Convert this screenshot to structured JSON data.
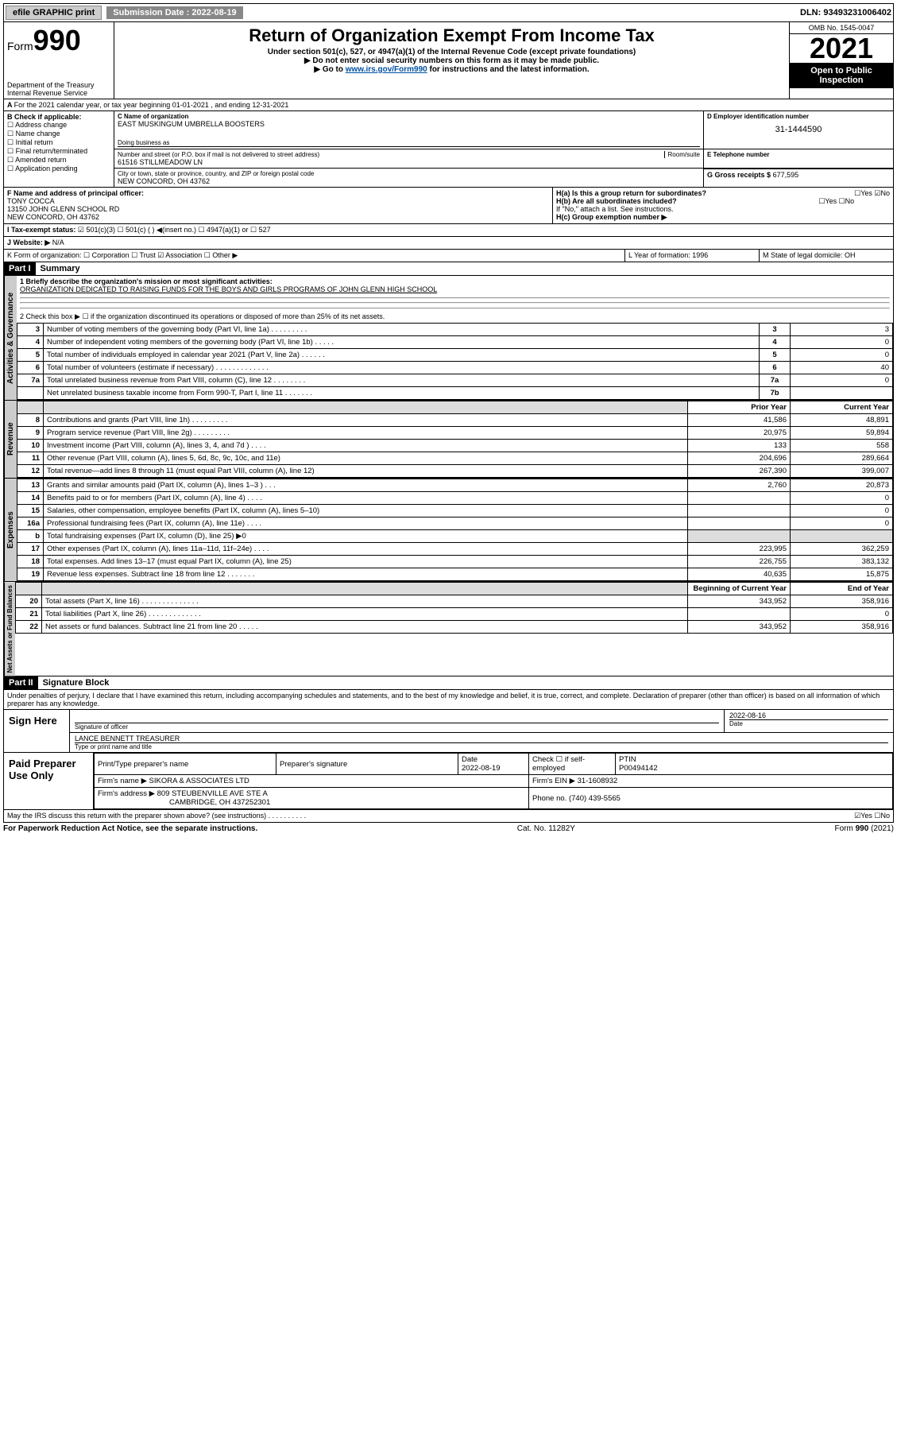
{
  "top": {
    "efile": "efile GRAPHIC print",
    "sub_label": "Submission Date : 2022-08-19",
    "dln": "DLN: 93493231006402"
  },
  "header": {
    "form_prefix": "Form",
    "form_no": "990",
    "dept": "Department of the Treasury",
    "irs": "Internal Revenue Service",
    "title": "Return of Organization Exempt From Income Tax",
    "sub1": "Under section 501(c), 527, or 4947(a)(1) of the Internal Revenue Code (except private foundations)",
    "sub2": "▶ Do not enter social security numbers on this form as it may be made public.",
    "sub3_pre": "▶ Go to ",
    "sub3_link": "www.irs.gov/Form990",
    "sub3_post": " for instructions and the latest information.",
    "omb": "OMB No. 1545-0047",
    "year": "2021",
    "open": "Open to Public Inspection"
  },
  "lineA": "For the 2021 calendar year, or tax year beginning 01-01-2021  , and ending 12-31-2021",
  "B": {
    "label": "B Check if applicable:",
    "opts": [
      "Address change",
      "Name change",
      "Initial return",
      "Final return/terminated",
      "Amended return",
      "Application pending"
    ]
  },
  "C": {
    "name_lbl": "C Name of organization",
    "name": "EAST MUSKINGUM UMBRELLA BOOSTERS",
    "dba_lbl": "Doing business as",
    "addr_lbl": "Number and street (or P.O. box if mail is not delivered to street address)",
    "room_lbl": "Room/suite",
    "addr": "61516 STILLMEADOW LN",
    "city_lbl": "City or town, state or province, country, and ZIP or foreign postal code",
    "city": "NEW CONCORD, OH  43762"
  },
  "D": {
    "lbl": "D Employer identification number",
    "val": "31-1444590"
  },
  "E": {
    "lbl": "E Telephone number"
  },
  "G": {
    "lbl": "G Gross receipts $",
    "val": "677,595"
  },
  "F": {
    "lbl": "F Name and address of principal officer:",
    "name": "TONY COCCA",
    "addr1": "13150 JOHN GLENN SCHOOL RD",
    "addr2": "NEW CONCORD, OH  43762"
  },
  "H": {
    "a": "H(a)  Is this a group return for subordinates?",
    "a_ans": "☐Yes ☑No",
    "b": "H(b)  Are all subordinates included?",
    "b_ans": "☐Yes ☐No",
    "note": "If \"No,\" attach a list. See instructions.",
    "c": "H(c)  Group exemption number ▶"
  },
  "I": {
    "lbl": "I   Tax-exempt status:",
    "opts": "☑ 501(c)(3)   ☐ 501(c) (  ) ◀(insert no.)   ☐ 4947(a)(1) or  ☐ 527"
  },
  "J": {
    "lbl": "J   Website: ▶",
    "val": "N/A"
  },
  "K": {
    "lbl": "K Form of organization:  ☐ Corporation  ☐ Trust  ☑ Association  ☐ Other ▶"
  },
  "L": {
    "lbl": "L Year of formation: 1996"
  },
  "M": {
    "lbl": "M State of legal domicile: OH"
  },
  "part1": {
    "hdr": "Part I",
    "title": "Summary",
    "q1_lbl": "1  Briefly describe the organization's mission or most significant activities:",
    "q1_val": "ORGANIZATION DEDICATED TO RAISING FUNDS FOR THE BOYS AND GIRLS PROGRAMS OF JOHN GLENN HIGH SCHOOL",
    "q2": "2   Check this box ▶ ☐  if the organization discontinued its operations or disposed of more than 25% of its net assets.",
    "rows_gov": [
      {
        "n": "3",
        "d": "Number of voting members of the governing body (Part VI, line 1a)  .   .   .   .   .   .   .   .   .",
        "b": "3",
        "v": "3"
      },
      {
        "n": "4",
        "d": "Number of independent voting members of the governing body (Part VI, line 1b)  .   .   .   .   .",
        "b": "4",
        "v": "0"
      },
      {
        "n": "5",
        "d": "Total number of individuals employed in calendar year 2021 (Part V, line 2a)  .   .   .   .   .   .",
        "b": "5",
        "v": "0"
      },
      {
        "n": "6",
        "d": "Total number of volunteers (estimate if necessary)  .   .   .   .   .   .   .   .   .   .   .   .   .",
        "b": "6",
        "v": "40"
      },
      {
        "n": "7a",
        "d": "Total unrelated business revenue from Part VIII, column (C), line 12  .   .   .   .   .   .   .   .",
        "b": "7a",
        "v": "0"
      },
      {
        "n": "",
        "d": "Net unrelated business taxable income from Form 990-T, Part I, line 11  .   .   .   .   .   .   .",
        "b": "7b",
        "v": ""
      }
    ],
    "col_hdr_prior": "Prior Year",
    "col_hdr_curr": "Current Year",
    "rows_rev": [
      {
        "n": "8",
        "d": "Contributions and grants (Part VIII, line 1h)  .   .   .   .   .   .   .   .   .",
        "p": "41,586",
        "c": "48,891"
      },
      {
        "n": "9",
        "d": "Program service revenue (Part VIII, line 2g)  .   .   .   .   .   .   .   .   .",
        "p": "20,975",
        "c": "59,894"
      },
      {
        "n": "10",
        "d": "Investment income (Part VIII, column (A), lines 3, 4, and 7d )  .   .   .   .",
        "p": "133",
        "c": "558"
      },
      {
        "n": "11",
        "d": "Other revenue (Part VIII, column (A), lines 5, 6d, 8c, 9c, 10c, and 11e)",
        "p": "204,696",
        "c": "289,664"
      },
      {
        "n": "12",
        "d": "Total revenue—add lines 8 through 11 (must equal Part VIII, column (A), line 12)",
        "p": "267,390",
        "c": "399,007"
      }
    ],
    "rows_exp": [
      {
        "n": "13",
        "d": "Grants and similar amounts paid (Part IX, column (A), lines 1–3 )  .   .   .",
        "p": "2,760",
        "c": "20,873"
      },
      {
        "n": "14",
        "d": "Benefits paid to or for members (Part IX, column (A), line 4)  .   .   .   .",
        "p": "",
        "c": "0"
      },
      {
        "n": "15",
        "d": "Salaries, other compensation, employee benefits (Part IX, column (A), lines 5–10)",
        "p": "",
        "c": "0"
      },
      {
        "n": "16a",
        "d": "Professional fundraising fees (Part IX, column (A), line 11e)  .   .   .   .",
        "p": "",
        "c": "0"
      },
      {
        "n": "b",
        "d": "Total fundraising expenses (Part IX, column (D), line 25) ▶0",
        "p": "shade",
        "c": "shade"
      },
      {
        "n": "17",
        "d": "Other expenses (Part IX, column (A), lines 11a–11d, 11f–24e)  .   .   .   .",
        "p": "223,995",
        "c": "362,259"
      },
      {
        "n": "18",
        "d": "Total expenses. Add lines 13–17 (must equal Part IX, column (A), line 25)",
        "p": "226,755",
        "c": "383,132"
      },
      {
        "n": "19",
        "d": "Revenue less expenses. Subtract line 18 from line 12  .   .   .   .   .   .   .",
        "p": "40,635",
        "c": "15,875"
      }
    ],
    "col_hdr_begin": "Beginning of Current Year",
    "col_hdr_end": "End of Year",
    "rows_net": [
      {
        "n": "20",
        "d": "Total assets (Part X, line 16)  .   .   .   .   .   .   .   .   .   .   .   .   .   .",
        "p": "343,952",
        "c": "358,916"
      },
      {
        "n": "21",
        "d": "Total liabilities (Part X, line 26)  .   .   .   .   .   .   .   .   .   .   .   .   .",
        "p": "",
        "c": "0"
      },
      {
        "n": "22",
        "d": "Net assets or fund balances. Subtract line 21 from line 20  .   .   .   .   .",
        "p": "343,952",
        "c": "358,916"
      }
    ],
    "vtabs": {
      "gov": "Activities & Governance",
      "rev": "Revenue",
      "exp": "Expenses",
      "net": "Net Assets or Fund Balances"
    }
  },
  "part2": {
    "hdr": "Part II",
    "title": "Signature Block",
    "decl": "Under penalties of perjury, I declare that I have examined this return, including accompanying schedules and statements, and to the best of my knowledge and belief, it is true, correct, and complete. Declaration of preparer (other than officer) is based on all information of which preparer has any knowledge."
  },
  "sign": {
    "here": "Sign Here",
    "sig_lbl": "Signature of officer",
    "date_lbl": "Date",
    "date": "2022-08-16",
    "name": "LANCE BENNETT TREASURER",
    "name_lbl": "Type or print name and title"
  },
  "paid": {
    "title": "Paid Preparer Use Only",
    "h1": "Print/Type preparer's name",
    "h2": "Preparer's signature",
    "h3": "Date",
    "h3v": "2022-08-19",
    "h4": "Check ☐ if self-employed",
    "h5": "PTIN",
    "h5v": "P00494142",
    "firm_lbl": "Firm's name    ▶",
    "firm": "SIKORA & ASSOCIATES LTD",
    "ein_lbl": "Firm's EIN ▶",
    "ein": "31-1608932",
    "addr_lbl": "Firm's address ▶",
    "addr1": "809 STEUBENVILLE AVE STE A",
    "addr2": "CAMBRIDGE, OH  437252301",
    "phone_lbl": "Phone no.",
    "phone": "(740) 439-5565"
  },
  "discuss": {
    "q": "May the IRS discuss this return with the preparer shown above? (see instructions)  .   .   .   .   .   .   .   .   .   .",
    "ans": "☑Yes  ☐No"
  },
  "footer": {
    "left": "For Paperwork Reduction Act Notice, see the separate instructions.",
    "mid": "Cat. No. 11282Y",
    "right": "Form 990 (2021)"
  }
}
